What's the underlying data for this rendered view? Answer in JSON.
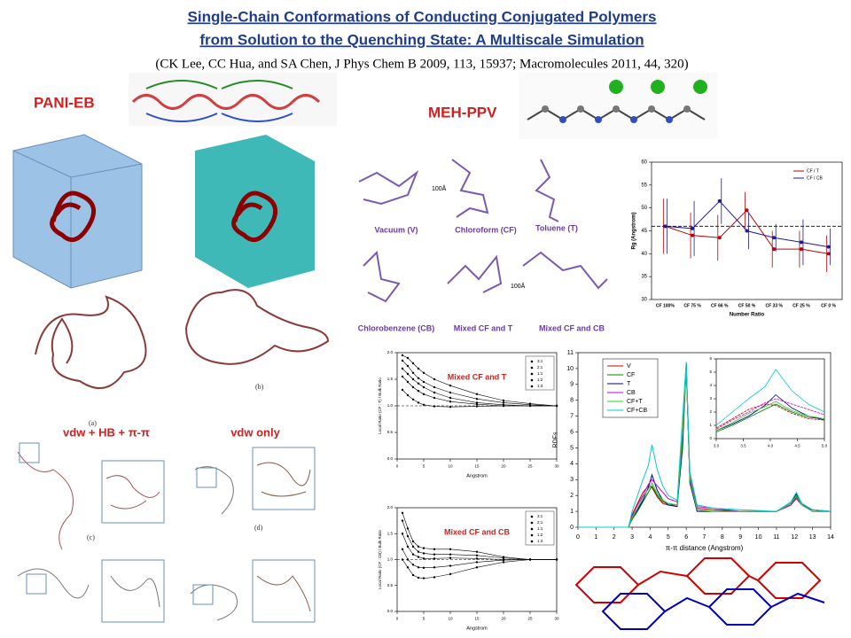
{
  "header": {
    "title_line1": "Single-Chain Conformations of Conducting Conjugated Polymers",
    "title_line2": "from Solution to the Quenching State: A Multiscale Simulation",
    "citation": "(CK Lee, CC Hua, and SA Chen, J Phys Chem B 2009, 113, 15937; Macromolecules 2011, 44, 320)"
  },
  "pani": {
    "label": "PANI-EB",
    "panel_a": "(a)",
    "panel_b": "(b)",
    "panel_c": "(c)",
    "panel_d": "(d)",
    "model_left": "vdw + HB + π-π",
    "model_right": "vdw only"
  },
  "meh": {
    "label": "MEH-PPV",
    "scale": "100Å",
    "solvents": [
      "Vacuum (V)",
      "Chloroform (CF)",
      "Toluene (T)",
      "Chlorobenzene (CB)",
      "Mixed CF and T",
      "Mixed CF and CB"
    ]
  },
  "rg_chart": {
    "type": "line",
    "xlabel": "Number Ratio",
    "ylabel": "Rg (Angstrom)",
    "categories": [
      "CF 100%",
      "CF 75 %",
      "CF 66 %",
      "CF 50 %",
      "CF 33 %",
      "CF 25 %",
      "CF 0 %"
    ],
    "ylim": [
      30,
      60
    ],
    "yticks": [
      30,
      35,
      40,
      45,
      50,
      55,
      60
    ],
    "reference_line": 46,
    "legend": "upper right",
    "series": [
      {
        "name": "CF / T",
        "color": "#c00000",
        "values": [
          46,
          44,
          43.5,
          49.5,
          41,
          41,
          40
        ],
        "errors": [
          6,
          5,
          5,
          4,
          4,
          4,
          4
        ]
      },
      {
        "name": "CF / CB",
        "color": "#1a1a9c",
        "values": [
          46,
          45.5,
          51.5,
          45,
          43.5,
          42.5,
          41.5
        ],
        "errors": [
          6,
          6,
          5,
          4,
          3,
          5,
          4
        ]
      }
    ]
  },
  "local_charts": [
    {
      "type": "line",
      "title": "Mixed CF and T",
      "xlabel": "Angstrom",
      "ylabel": "Local Ratio (CF : T) / Bulk Ratio",
      "xlim": [
        0,
        30
      ],
      "xticks": [
        0,
        5,
        10,
        15,
        20,
        25,
        30
      ],
      "ylim": [
        0,
        2
      ],
      "yticks": [
        {
          "value": 0,
          "label": "0.0"
        },
        {
          "value": 0.5,
          "label": "0.5"
        },
        {
          "value": 1,
          "label": "1.0"
        },
        {
          "value": 1.5,
          "label": "1.5"
        },
        {
          "value": 2,
          "label": "2.0"
        }
      ],
      "x": [
        1,
        2,
        3,
        4,
        5,
        7,
        10,
        15,
        20,
        25,
        30
      ],
      "series": [
        {
          "name": "3:1",
          "color": "#000000",
          "values": [
            1.95,
            1.9,
            1.8,
            1.7,
            1.62,
            1.5,
            1.38,
            1.22,
            1.1,
            1.04,
            1.0
          ]
        },
        {
          "name": "2:1",
          "color": "#000000",
          "values": [
            1.85,
            1.75,
            1.62,
            1.52,
            1.45,
            1.35,
            1.25,
            1.13,
            1.06,
            1.02,
            1.0
          ]
        },
        {
          "name": "1:1",
          "color": "#000000",
          "values": [
            1.7,
            1.6,
            1.5,
            1.42,
            1.35,
            1.25,
            1.15,
            1.06,
            1.02,
            1.0,
            1.0
          ]
        },
        {
          "name": "1:2",
          "color": "#000000",
          "values": [
            1.55,
            1.45,
            1.35,
            1.28,
            1.22,
            1.15,
            1.08,
            1.03,
            1.0,
            1.0,
            1.0
          ]
        },
        {
          "name": "1:3",
          "color": "#000000",
          "values": [
            1.3,
            1.2,
            1.12,
            1.06,
            1.02,
            0.99,
            0.98,
            0.99,
            1.0,
            1.0,
            1.0
          ]
        }
      ]
    },
    {
      "type": "line",
      "title": "Mixed CF and CB",
      "xlabel": "Angstrom",
      "ylabel": "Local Ratio (CF : CB) / Bulk Ratio",
      "xlim": [
        0,
        30
      ],
      "xticks": [
        0,
        5,
        10,
        15,
        20,
        25,
        30
      ],
      "ylim": [
        0,
        2
      ],
      "yticks": [
        {
          "value": 0,
          "label": "0.0"
        },
        {
          "value": 0.5,
          "label": "0.5"
        },
        {
          "value": 1,
          "label": "1.0"
        },
        {
          "value": 1.5,
          "label": "1.5"
        },
        {
          "value": 2,
          "label": "2.0"
        }
      ],
      "x": [
        1,
        2,
        3,
        4,
        5,
        7,
        10,
        15,
        20,
        25,
        30
      ],
      "series": [
        {
          "name": "3:1",
          "color": "#000000",
          "values": [
            1.9,
            1.6,
            1.35,
            1.25,
            1.22,
            1.2,
            1.2,
            1.15,
            1.05,
            1.0,
            1.0
          ]
        },
        {
          "name": "2:1",
          "color": "#000000",
          "values": [
            1.75,
            1.45,
            1.25,
            1.15,
            1.12,
            1.1,
            1.1,
            1.08,
            1.03,
            1.0,
            1.0
          ]
        },
        {
          "name": "1:1",
          "color": "#000000",
          "values": [
            1.5,
            1.25,
            1.1,
            1.05,
            1.02,
            1.02,
            1.03,
            1.02,
            1.0,
            1.0,
            1.0
          ]
        },
        {
          "name": "1:2",
          "color": "#000000",
          "values": [
            1.2,
            1.0,
            0.9,
            0.85,
            0.84,
            0.85,
            0.88,
            0.95,
            0.99,
            1.0,
            1.0
          ]
        },
        {
          "name": "1:3",
          "color": "#000000",
          "values": [
            1.0,
            0.85,
            0.7,
            0.65,
            0.64,
            0.66,
            0.72,
            0.85,
            0.95,
            1.0,
            1.0
          ]
        }
      ]
    }
  ],
  "rdf_chart": {
    "type": "line",
    "xlabel": "π-π distance (Angstrom)",
    "ylabel": "RDFs",
    "xlim": [
      0,
      14
    ],
    "xticks": [
      0,
      1,
      2,
      3,
      4,
      5,
      6,
      7,
      8,
      9,
      10,
      11,
      12,
      13,
      14
    ],
    "ylim": [
      0,
      11
    ],
    "yticks": [
      0,
      1,
      2,
      3,
      4,
      5,
      6,
      7,
      8,
      9,
      10,
      11
    ],
    "legend": "upper left",
    "inset": {
      "xlim": [
        3,
        5
      ],
      "xticks": [
        {
          "value": 3,
          "label": "3.0"
        },
        {
          "value": 3.5,
          "label": "3.5"
        },
        {
          "value": 4,
          "label": "4.0"
        },
        {
          "value": 4.5,
          "label": "4.5"
        },
        {
          "value": 5,
          "label": "5.0"
        }
      ],
      "ylim": [
        0,
        6
      ],
      "yticks": [
        0,
        1,
        2,
        3,
        4,
        5,
        6
      ]
    },
    "x": [
      0,
      2.8,
      3.0,
      3.3,
      3.6,
      3.9,
      4.1,
      4.4,
      4.7,
      5.0,
      5.5,
      5.8,
      6.0,
      6.2,
      6.6,
      7.5,
      9,
      11,
      11.8,
      12.1,
      12.4,
      13,
      14
    ],
    "series": [
      {
        "name": "V",
        "color": "#d00000",
        "values": [
          0,
          0,
          0.8,
          1.5,
          2.2,
          2.6,
          2.5,
          1.9,
          1.5,
          1.4,
          1.4,
          6,
          10.4,
          3,
          1.2,
          1.1,
          1.0,
          1.0,
          1.5,
          2.0,
          1.5,
          1.1,
          1.0
        ]
      },
      {
        "name": "CF",
        "color": "#008000",
        "values": [
          0,
          0,
          0.5,
          1.0,
          1.6,
          2.2,
          2.6,
          2.0,
          1.6,
          1.5,
          1.4,
          5,
          10.2,
          3,
          1.1,
          1.0,
          1.0,
          1.0,
          1.4,
          1.9,
          1.4,
          1.0,
          1.0
        ]
      },
      {
        "name": "T",
        "color": "#00008b",
        "values": [
          0,
          0,
          0.6,
          1.1,
          1.7,
          2.5,
          3.3,
          2.3,
          1.7,
          1.4,
          1.3,
          5.5,
          10.3,
          2.8,
          1.0,
          1.0,
          1.0,
          1.0,
          1.5,
          2.1,
          1.5,
          1.0,
          1.0
        ]
      },
      {
        "name": "CB",
        "color": "#cc00cc",
        "values": [
          0,
          0,
          0.7,
          1.4,
          2.0,
          2.7,
          3.0,
          2.6,
          2.2,
          1.8,
          1.6,
          5.8,
          10.0,
          3.2,
          1.3,
          1.2,
          1.0,
          1.0,
          1.4,
          1.8,
          1.4,
          1.1,
          1.0
        ]
      },
      {
        "name": "CF+T",
        "color": "#33cc33",
        "values": [
          0,
          0,
          0.6,
          1.2,
          1.9,
          2.4,
          2.8,
          2.1,
          1.7,
          1.5,
          1.4,
          6,
          10.1,
          3,
          1.1,
          1.0,
          1.0,
          1.0,
          1.5,
          2.0,
          1.4,
          1.0,
          1.0
        ]
      },
      {
        "name": "CF+CB",
        "color": "#00cccc",
        "values": [
          0,
          0,
          1.0,
          2.0,
          3.0,
          3.9,
          5.2,
          3.6,
          2.6,
          2.0,
          1.7,
          7,
          10.4,
          3.5,
          1.4,
          1.2,
          1.1,
          1.0,
          1.6,
          2.2,
          1.5,
          1.1,
          1.0
        ]
      }
    ]
  }
}
